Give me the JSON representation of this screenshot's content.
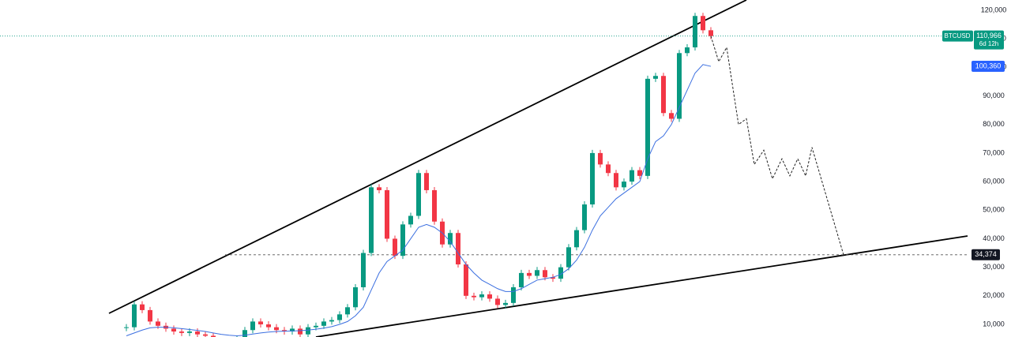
{
  "chart_data": {
    "type": "candlestick",
    "symbol": "BTCUSD",
    "countdown": "6d 12h",
    "x": [
      0,
      1,
      2,
      3,
      4,
      5,
      6,
      7,
      8,
      9,
      10,
      11,
      12,
      13,
      14,
      15,
      16,
      17,
      18,
      19,
      20,
      21,
      22,
      23,
      24,
      25,
      26,
      27,
      28,
      29,
      30,
      31,
      32,
      33,
      34,
      35,
      36,
      37,
      38,
      39,
      40,
      41,
      42,
      43,
      44,
      45,
      46,
      47,
      48,
      49,
      50,
      51,
      52,
      53,
      54,
      55,
      56,
      57,
      58,
      59,
      60,
      61,
      62,
      63,
      64,
      65,
      66,
      67,
      68,
      69,
      70,
      71,
      72,
      73,
      74
    ],
    "series": [
      {
        "name": "BTCUSD",
        "up_color": "#089981",
        "down_color": "#f23645",
        "values": [
          9000,
          17000,
          15000,
          11000,
          9500,
          8500,
          7500,
          7000,
          7500,
          6500,
          6000,
          4000,
          3500,
          4000,
          5000,
          8000,
          11000,
          10000,
          9000,
          8000,
          7500,
          8500,
          6500,
          9000,
          9500,
          11000,
          11500,
          13500,
          16000,
          23000,
          35000,
          58000,
          57000,
          40000,
          34000,
          45000,
          48000,
          63000,
          57000,
          46000,
          38000,
          42000,
          31000,
          20000,
          19500,
          20500,
          19000,
          16800,
          17500,
          23000,
          28000,
          27000,
          29000,
          26500,
          26000,
          30000,
          37000,
          43000,
          52000,
          70000,
          66000,
          63000,
          58000,
          60000,
          64000,
          62000,
          96000,
          97000,
          84000,
          82000,
          105000,
          107000,
          118000,
          113000,
          110966
        ]
      },
      {
        "name": "MA",
        "color": "#3b6fe0",
        "values": [
          6000,
          7000,
          8000,
          8800,
          9000,
          9000,
          8800,
          8500,
          8200,
          7900,
          7500,
          7000,
          6500,
          6200,
          6000,
          6200,
          6600,
          7000,
          7300,
          7500,
          7600,
          7700,
          7800,
          8000,
          8300,
          8700,
          9200,
          10000,
          11000,
          13000,
          16000,
          22000,
          28000,
          32000,
          34000,
          36000,
          40000,
          44000,
          45000,
          44000,
          42000,
          39000,
          35000,
          31000,
          28000,
          25500,
          24000,
          22500,
          21500,
          21500,
          22500,
          24000,
          25500,
          26000,
          26500,
          27500,
          29500,
          32500,
          37000,
          43000,
          48000,
          51000,
          54000,
          56000,
          58000,
          60000,
          68000,
          74000,
          76000,
          80000,
          86000,
          92000,
          98000,
          101000,
          100360
        ]
      }
    ],
    "projection": {
      "x": [
        74,
        75,
        76,
        77.5,
        78.5,
        79.5,
        80.7,
        81.8,
        83,
        84,
        85,
        86,
        86.8,
        90.8
      ],
      "values": [
        110966,
        102000,
        107000,
        80000,
        82000,
        66000,
        71000,
        61000,
        68000,
        62000,
        68000,
        62000,
        72000,
        34374
      ]
    },
    "trendlines": [
      {
        "x": [
          -2.2,
          78.5
        ],
        "values": [
          13870,
          123600
        ]
      },
      {
        "x": [
          24,
          106.5
        ],
        "values": [
          5578,
          40956
        ]
      }
    ],
    "last_price": {
      "value": 110966,
      "label": "110,966"
    },
    "ma_last": {
      "value": 100360,
      "label": "100,360"
    },
    "level": {
      "value": 34374,
      "label": "34,374"
    },
    "xlim": [
      -16,
      106.5
    ],
    "ylim": [
      5578,
      123593
    ],
    "yticks": [
      {
        "value": 10000,
        "label": "10,000"
      },
      {
        "value": 20000,
        "label": "20,000"
      },
      {
        "value": 30000,
        "label": "30,000"
      },
      {
        "value": 40000,
        "label": "40,000"
      },
      {
        "value": 50000,
        "label": "50,000"
      },
      {
        "value": 60000,
        "label": "60,000"
      },
      {
        "value": 70000,
        "label": "70,000"
      },
      {
        "value": 80000,
        "label": "80,000"
      },
      {
        "value": 90000,
        "label": "90,000"
      },
      {
        "value": 100000,
        "label": "100,000"
      },
      {
        "value": 110000,
        "label": "110,000"
      },
      {
        "value": 120000,
        "label": "120,000"
      }
    ]
  }
}
